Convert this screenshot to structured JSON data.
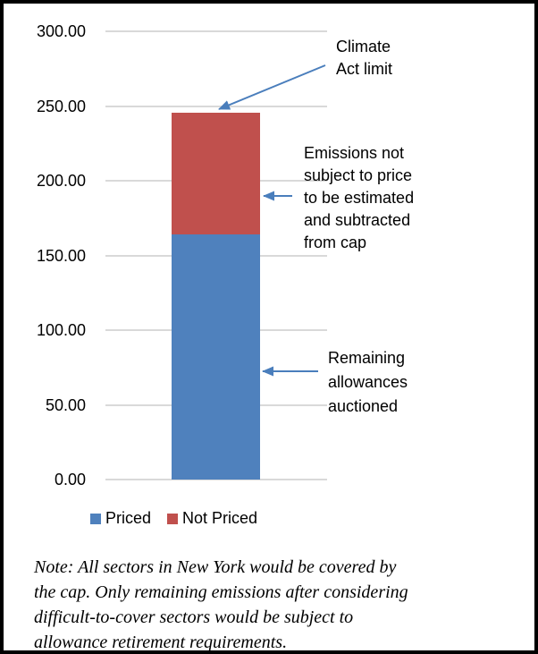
{
  "chart_data": {
    "type": "bar",
    "stacked": true,
    "categories": [
      ""
    ],
    "series": [
      {
        "name": "Priced",
        "values": [
          164
        ],
        "color": "#4F81BD"
      },
      {
        "name": "Not Priced",
        "values": [
          81.5
        ],
        "color": "#C0504D"
      }
    ],
    "stack_total": 245.5,
    "title": "",
    "xlabel": "",
    "ylabel": "",
    "ylim": [
      0,
      300
    ],
    "ytick_step": 50,
    "ytick_labels": [
      "0.00",
      "50.00",
      "100.00",
      "150.00",
      "200.00",
      "250.00",
      "300.00"
    ],
    "grid": true,
    "legend_position": "bottom",
    "annotations": [
      {
        "id": "climate-act-limit",
        "text": "Climate\nAct limit",
        "target": "top of bar at 245.5"
      },
      {
        "id": "emissions-not-priced",
        "text": "Emissions not\nsubject to price\nto be estimated\nand subtracted\nfrom cap",
        "target": "Not Priced segment"
      },
      {
        "id": "remaining-allowances",
        "text": "Remaining\nallowances\nauctioned",
        "target": "Priced segment"
      }
    ]
  },
  "note": "Note: All sectors in New York would be covered by\nthe cap. Only remaining emissions after considering\ndifficult-to-cover sectors would be subject to\nallowance retirement requirements.",
  "colors": {
    "priced": "#4F81BD",
    "not_priced": "#C0504D",
    "arrow": "#4A7EBC",
    "gridline": "#D9D9D9",
    "border": "#000000"
  }
}
